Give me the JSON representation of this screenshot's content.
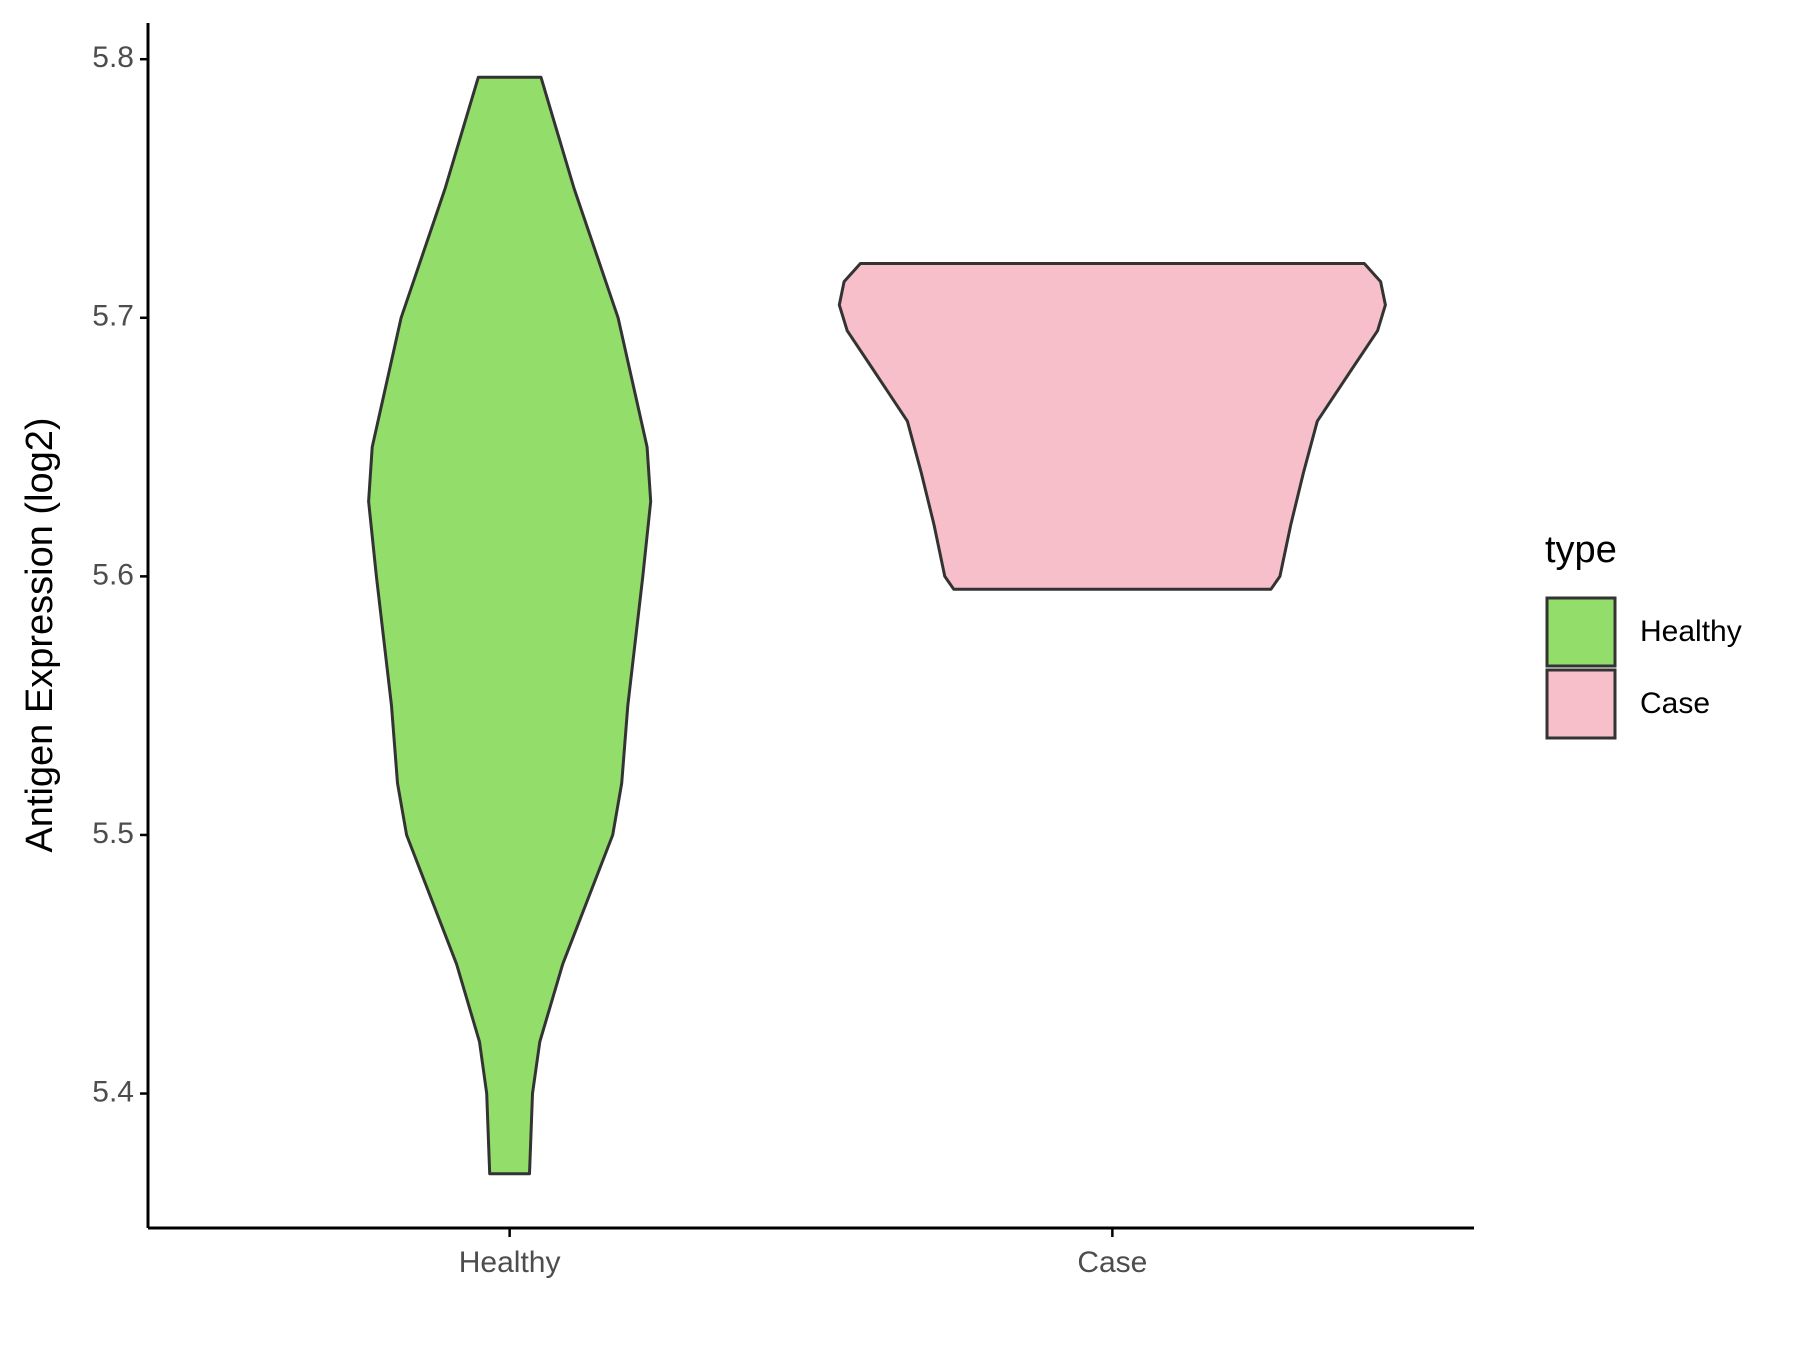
{
  "chart_data": {
    "type": "violin",
    "y_label": "Antigen Expression (log2)",
    "legend_title": "type",
    "legend": "right",
    "categories": [
      "Healthy",
      "Case"
    ],
    "series": [
      {
        "name": "Healthy",
        "color": "#93dd6a",
        "y": [
          5.793,
          5.775,
          5.75,
          5.7,
          5.65,
          5.629,
          5.6,
          5.55,
          5.52,
          5.5,
          5.45,
          5.42,
          5.4,
          5.369
        ],
        "width": [
          0.052,
          0.075,
          0.107,
          0.18,
          0.228,
          0.234,
          0.221,
          0.196,
          0.186,
          0.171,
          0.088,
          0.05,
          0.038,
          0.033
        ]
      },
      {
        "name": "Case",
        "color": "#f7bfca",
        "y": [
          5.721,
          5.714,
          5.705,
          5.695,
          5.68,
          5.66,
          5.64,
          5.62,
          5.6,
          5.595
        ],
        "width": [
          0.418,
          0.445,
          0.453,
          0.44,
          0.397,
          0.34,
          0.317,
          0.296,
          0.278,
          0.263
        ]
      }
    ],
    "ylim": [
      5.348,
      5.814
    ],
    "yticks": [
      5.4,
      5.5,
      5.6,
      5.7,
      5.8
    ]
  }
}
